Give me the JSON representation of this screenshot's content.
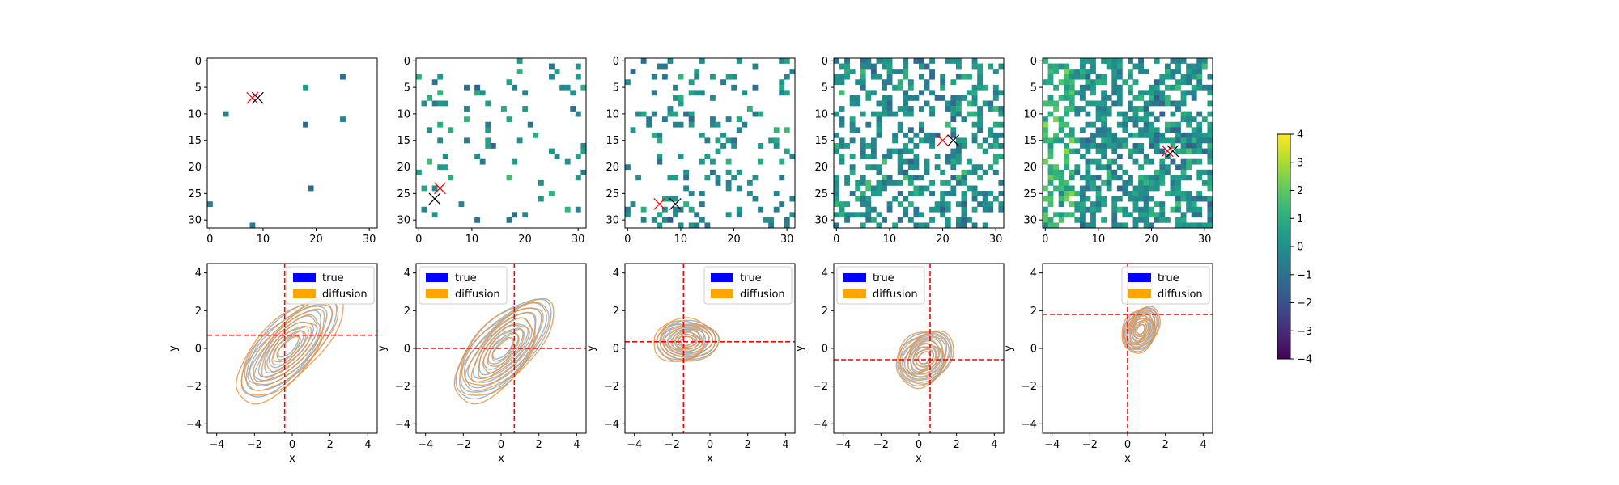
{
  "heatmap_common": {
    "ticks_x": [
      0,
      10,
      20,
      30
    ],
    "ticks_y": [
      0,
      5,
      10,
      15,
      20,
      25,
      30
    ]
  },
  "kde_common": {
    "ticks": [
      -4,
      -2,
      0,
      2,
      4
    ],
    "xlabel": "x",
    "ylabel": "y",
    "xlim": [
      -4.5,
      4.5
    ],
    "ylim": [
      -4.5,
      4.5
    ],
    "legend": [
      {
        "label": "true",
        "color": "#0000ff"
      },
      {
        "label": "diffusion",
        "color": "#ffa500"
      }
    ],
    "line_color": "#ff0000",
    "true_contour_color": "#7ba7cf",
    "diffusion_contour_color": "#e8913e"
  },
  "colorbar": {
    "ticks": [
      4,
      3,
      2,
      1,
      0,
      -1,
      -2,
      -3,
      -4
    ],
    "range": [
      -4,
      4
    ],
    "colormap": "viridis"
  },
  "chart_data": [
    {
      "type": "heatmap",
      "grid_size": 32,
      "density": 0.01,
      "seed": 11,
      "xlim": [
        -0.5,
        31.5
      ],
      "ylim": [
        31.5,
        -0.5
      ],
      "markers": [
        {
          "x": 8,
          "y": 7,
          "color": "#ff0000"
        },
        {
          "x": 9,
          "y": 7,
          "color": "#000000"
        }
      ]
    },
    {
      "type": "heatmap",
      "grid_size": 32,
      "density": 0.06,
      "seed": 23,
      "xlim": [
        -0.5,
        31.5
      ],
      "ylim": [
        31.5,
        -0.5
      ],
      "markers": [
        {
          "x": 4,
          "y": 24,
          "color": "#ff0000"
        },
        {
          "x": 3,
          "y": 26,
          "color": "#000000"
        }
      ]
    },
    {
      "type": "heatmap",
      "grid_size": 32,
      "density": 0.14,
      "seed": 37,
      "xlim": [
        -0.5,
        31.5
      ],
      "ylim": [
        31.5,
        -0.5
      ],
      "markers": [
        {
          "x": 6,
          "y": 27,
          "color": "#ff0000"
        },
        {
          "x": 9,
          "y": 27,
          "color": "#000000"
        }
      ]
    },
    {
      "type": "heatmap",
      "grid_size": 32,
      "density": 0.42,
      "seed": 53,
      "xlim": [
        -0.5,
        31.5
      ],
      "ylim": [
        31.5,
        -0.5
      ],
      "markers": [
        {
          "x": 20,
          "y": 15,
          "color": "#ff0000"
        },
        {
          "x": 22,
          "y": 15,
          "color": "#000000"
        }
      ]
    },
    {
      "type": "heatmap",
      "grid_size": 32,
      "density": 0.6,
      "seed": 71,
      "xlim": [
        -0.5,
        31.5
      ],
      "ylim": [
        31.5,
        -0.5
      ],
      "markers": [
        {
          "x": 23,
          "y": 17,
          "color": "#ff0000"
        },
        {
          "x": 24,
          "y": 17,
          "color": "#000000"
        }
      ]
    },
    {
      "type": "contour",
      "true": {
        "cx": -0.2,
        "cy": 0.1,
        "sx": 1.2,
        "sy": 1.25,
        "rho": 0.72
      },
      "diffusion": {
        "cx": -0.2,
        "cy": 0.0,
        "sx": 1.35,
        "sy": 1.35,
        "rho": 0.72
      },
      "vline_x": -0.4,
      "hline_y": 0.7,
      "legend_position": "upper right"
    },
    {
      "type": "contour",
      "true": {
        "cx": 0.1,
        "cy": 0.0,
        "sx": 1.2,
        "sy": 1.25,
        "rho": 0.68
      },
      "diffusion": {
        "cx": 0.1,
        "cy": -0.1,
        "sx": 1.25,
        "sy": 1.3,
        "rho": 0.68
      },
      "vline_x": 0.7,
      "hline_y": 0.0,
      "legend_position": "upper left"
    },
    {
      "type": "contour",
      "true": {
        "cx": -1.2,
        "cy": 0.4,
        "sx": 0.78,
        "sy": 0.5,
        "rho": 0.05
      },
      "diffusion": {
        "cx": -1.3,
        "cy": 0.4,
        "sx": 0.82,
        "sy": 0.55,
        "rho": 0.05
      },
      "vline_x": -1.4,
      "hline_y": 0.35,
      "legend_position": "upper right"
    },
    {
      "type": "contour",
      "true": {
        "cx": 0.3,
        "cy": -0.5,
        "sx": 0.68,
        "sy": 0.68,
        "rho": 0.25
      },
      "diffusion": {
        "cx": 0.3,
        "cy": -0.5,
        "sx": 0.72,
        "sy": 0.72,
        "rho": 0.25
      },
      "vline_x": 0.6,
      "hline_y": -0.6,
      "legend_position": "upper left"
    },
    {
      "type": "contour",
      "true": {
        "cx": 0.7,
        "cy": 1.0,
        "sx": 0.45,
        "sy": 0.55,
        "rho": 0.3
      },
      "diffusion": {
        "cx": 0.7,
        "cy": 1.0,
        "sx": 0.48,
        "sy": 0.58,
        "rho": 0.3
      },
      "vline_x": 0.0,
      "hline_y": 1.8,
      "legend_position": "upper right"
    }
  ]
}
